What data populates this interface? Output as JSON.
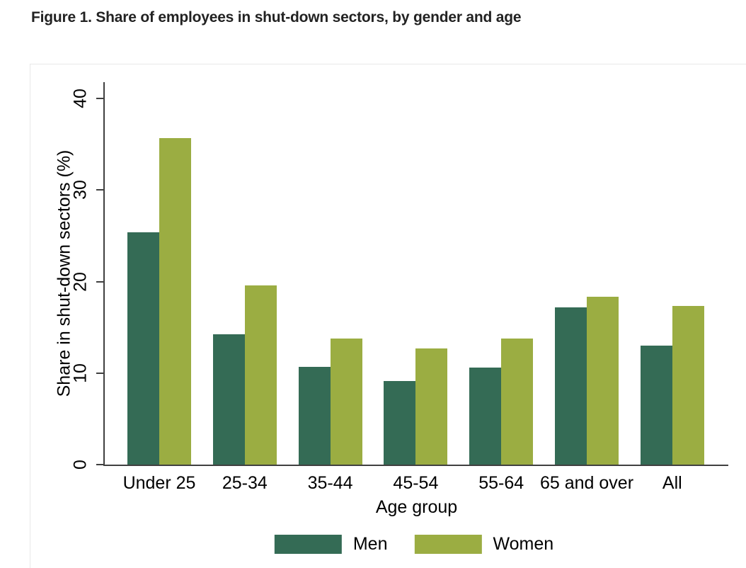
{
  "figure": {
    "title": "Figure 1. Share of employees in shut-down sectors, by gender and age"
  },
  "chart_data": {
    "type": "bar",
    "title": "Figure 1. Share of employees in shut-down sectors, by gender and age",
    "categories": [
      "Under 25",
      "25-34",
      "35-44",
      "45-54",
      "55-64",
      "65 and over",
      "All"
    ],
    "series": [
      {
        "name": "Men",
        "color": "#346b55",
        "values": [
          25.4,
          14.2,
          10.7,
          9.1,
          10.6,
          17.2,
          13.0
        ]
      },
      {
        "name": "Women",
        "color": "#9bad42",
        "values": [
          35.7,
          19.6,
          13.8,
          12.7,
          13.8,
          18.3,
          17.3
        ]
      }
    ],
    "xlabel": "Age group",
    "ylabel": "Share in shut-down sectors (%)",
    "ylim": [
      0,
      40
    ],
    "yticks": [
      0,
      10,
      20,
      30,
      40
    ],
    "grid": false,
    "legend_position": "bottom"
  },
  "colors": {
    "men_bar": "#346b55",
    "women_bar": "#9bad42",
    "axis_line": "#404040",
    "frame_border": "#e8e8e8",
    "title_text": "#222222",
    "label_text": "#000000",
    "background": "#ffffff"
  }
}
